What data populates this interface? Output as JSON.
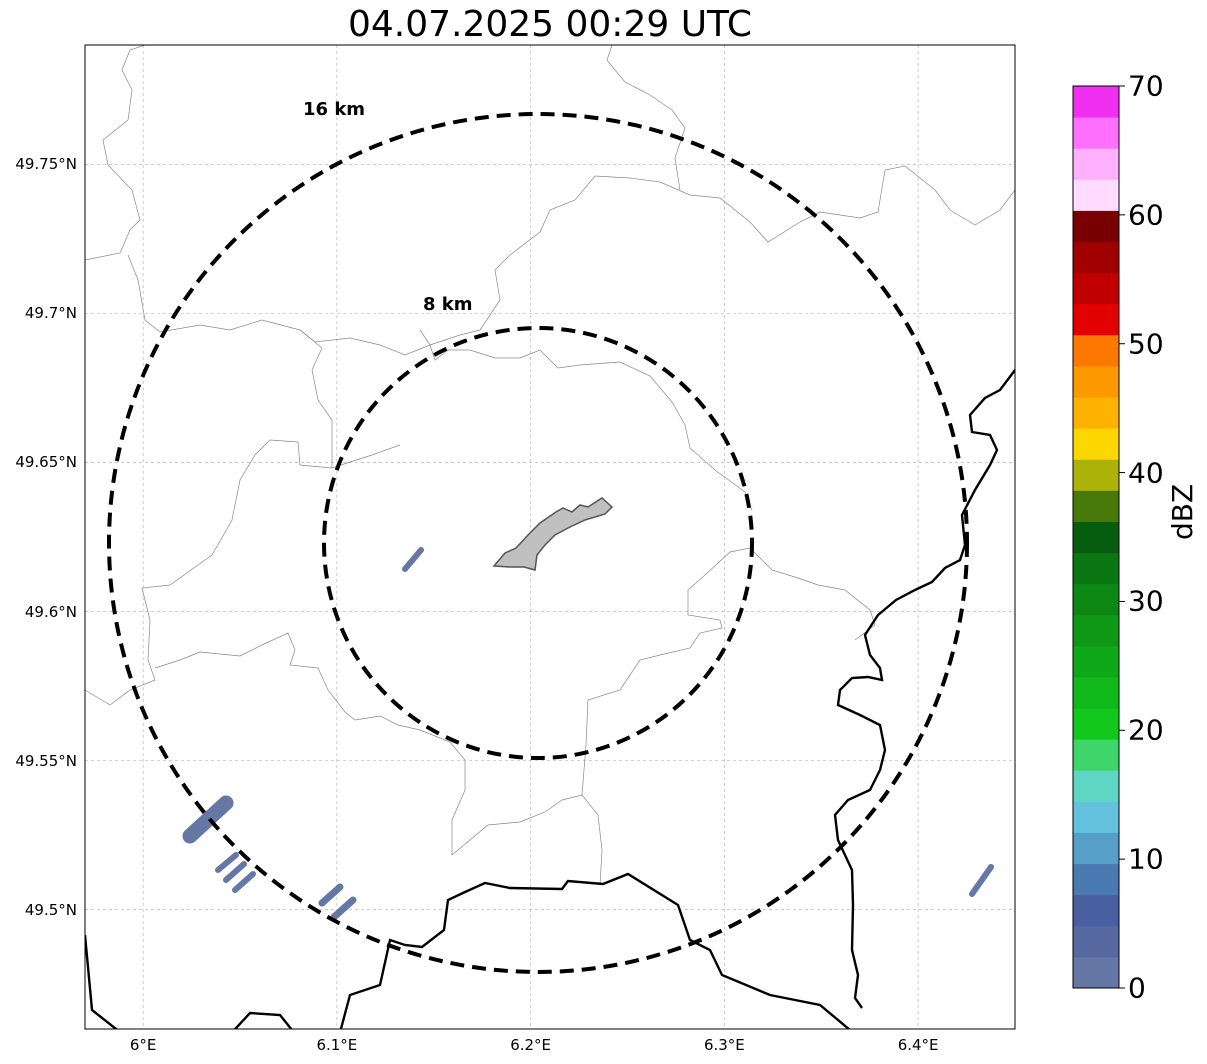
{
  "title": "04.07.2025 00:29 UTC",
  "map": {
    "lon_range": [
      5.97,
      6.45
    ],
    "lat_range": [
      49.46,
      49.79
    ],
    "lat_ticks": [
      {
        "value": 49.75,
        "label": "49.75°N"
      },
      {
        "value": 49.7,
        "label": "49.7°N"
      },
      {
        "value": 49.65,
        "label": "49.65°N"
      },
      {
        "value": 49.6,
        "label": "49.6°N"
      },
      {
        "value": 49.55,
        "label": "49.55°N"
      },
      {
        "value": 49.5,
        "label": "49.5°N"
      }
    ],
    "lon_ticks": [
      {
        "value": 6.0,
        "label": "6°E"
      },
      {
        "value": 6.1,
        "label": "6.1°E"
      },
      {
        "value": 6.2,
        "label": "6.2°E"
      },
      {
        "value": 6.3,
        "label": "6.3°E"
      },
      {
        "value": 6.4,
        "label": "6.4°E"
      }
    ],
    "grid": true,
    "range_rings": [
      {
        "label": "8 km",
        "radius_km": 8
      },
      {
        "label": "16 km",
        "radius_km": 16
      }
    ],
    "radar_center": {
      "lon": 6.2,
      "lat": 49.623
    },
    "reflectivity_echoes_dbz": [
      0,
      0,
      0,
      0,
      0,
      0,
      0
    ]
  },
  "colorbar": {
    "label": "dBZ",
    "ticks": [
      "0",
      "10",
      "20",
      "30",
      "40",
      "50",
      "60",
      "70"
    ],
    "colors": [
      "#6577a5",
      "#566aa1",
      "#4860a0",
      "#4a7ab1",
      "#559fc8",
      "#63c1de",
      "#5fd6c4",
      "#3ed66a",
      "#12c81c",
      "#10b81a",
      "#0fa818",
      "#0e9816",
      "#0c8714",
      "#0a7712",
      "#075d0e",
      "#477a0b",
      "#abb308",
      "#fdd600",
      "#fdb200",
      "#fd9800",
      "#fd7800",
      "#e30000",
      "#c00000",
      "#a00000",
      "#780000",
      "#ffdcff",
      "#ffb0ff",
      "#ff70ff",
      "#f030f0"
    ]
  }
}
